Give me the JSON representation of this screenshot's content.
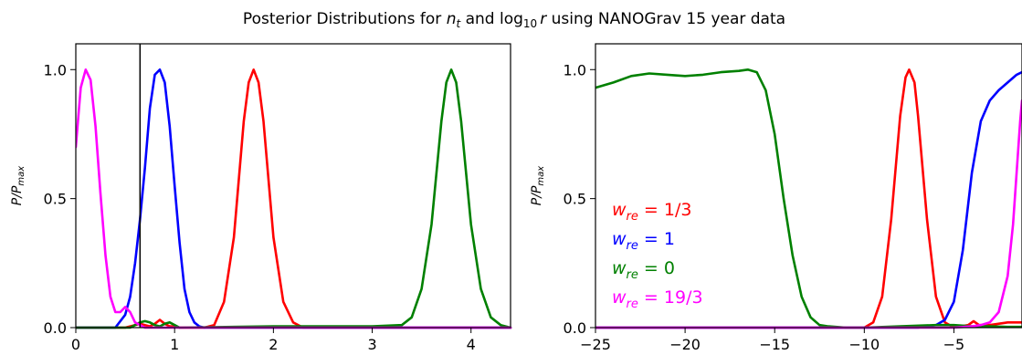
{
  "figure": {
    "title_prefix": "Posterior Distributions for ",
    "title_nt": "n",
    "title_nt_sub": "t",
    "title_and": " and log",
    "title_log_sub": "10",
    "title_r": "r",
    "title_suffix": " using NANOGrav 15 year data"
  },
  "chart_data": [
    {
      "type": "line",
      "ylabel": "P/P",
      "ylabel_sub": "max",
      "xlim": [
        0,
        4.4
      ],
      "ylim": [
        0,
        1.1
      ],
      "xticks": [
        "0",
        "1",
        "2",
        "3",
        "4"
      ],
      "yticks": [
        "0.0",
        "0.5",
        "1.0"
      ],
      "grid": false,
      "vertical_line_x": 0.65,
      "series": [
        {
          "color": "#ff0000",
          "x": [
            0.0,
            0.5,
            0.6,
            0.65,
            0.7,
            0.75,
            0.8,
            0.85,
            0.9,
            0.95,
            1.0,
            1.05,
            1.2,
            1.3,
            1.4,
            1.5,
            1.6,
            1.7,
            1.75,
            1.8,
            1.85,
            1.9,
            2.0,
            2.1,
            2.2,
            2.3,
            2.4,
            4.4
          ],
          "y": [
            0.0,
            0.0,
            0.01,
            0.015,
            0.01,
            0.005,
            0.015,
            0.03,
            0.015,
            0.005,
            0.005,
            0.0,
            0.0,
            0.0,
            0.01,
            0.1,
            0.35,
            0.8,
            0.95,
            1.0,
            0.95,
            0.8,
            0.35,
            0.1,
            0.02,
            0.0,
            0.0,
            0.0
          ]
        },
        {
          "color": "#0000ff",
          "x": [
            0.0,
            0.4,
            0.5,
            0.55,
            0.6,
            0.65,
            0.7,
            0.75,
            0.8,
            0.85,
            0.9,
            0.95,
            1.0,
            1.05,
            1.1,
            1.15,
            1.2,
            1.25,
            1.3,
            4.4
          ],
          "y": [
            0.0,
            0.0,
            0.05,
            0.12,
            0.25,
            0.42,
            0.62,
            0.85,
            0.98,
            1.0,
            0.95,
            0.78,
            0.55,
            0.33,
            0.15,
            0.06,
            0.02,
            0.005,
            0.0,
            0.0
          ]
        },
        {
          "color": "#008000",
          "x": [
            0.0,
            0.55,
            0.6,
            0.65,
            0.7,
            0.75,
            0.8,
            0.85,
            0.9,
            0.95,
            1.0,
            1.05,
            2.0,
            3.0,
            3.3,
            3.4,
            3.5,
            3.6,
            3.7,
            3.75,
            3.8,
            3.85,
            3.9,
            4.0,
            4.1,
            4.2,
            4.3,
            4.4
          ],
          "y": [
            0.0,
            0.0,
            0.01,
            0.02,
            0.025,
            0.02,
            0.01,
            0.005,
            0.015,
            0.02,
            0.01,
            0.0,
            0.005,
            0.005,
            0.01,
            0.04,
            0.15,
            0.4,
            0.8,
            0.95,
            1.0,
            0.95,
            0.8,
            0.4,
            0.15,
            0.04,
            0.01,
            0.0
          ]
        },
        {
          "color": "#ff00ff",
          "x": [
            0.0,
            0.05,
            0.1,
            0.15,
            0.2,
            0.25,
            0.3,
            0.35,
            0.4,
            0.45,
            0.5,
            0.55,
            0.6,
            0.7,
            4.4
          ],
          "y": [
            0.7,
            0.93,
            1.0,
            0.96,
            0.78,
            0.52,
            0.28,
            0.12,
            0.06,
            0.06,
            0.08,
            0.06,
            0.02,
            0.0,
            0.0
          ]
        }
      ]
    },
    {
      "type": "line",
      "ylabel": "P/P",
      "ylabel_sub": "max",
      "xlim": [
        -25,
        -1.2
      ],
      "ylim": [
        0,
        1.1
      ],
      "xticks": [
        "−25",
        "−20",
        "−15",
        "−10",
        "−5"
      ],
      "yticks": [
        "0.0",
        "0.5",
        "1.0"
      ],
      "grid": false,
      "legend_position": "center-left",
      "series": [
        {
          "name": "w_re = 1/3",
          "name_base": "w",
          "name_sub": "re",
          "name_value": " = 1/3",
          "color": "#ff0000",
          "x": [
            -25,
            -10,
            -9.5,
            -9,
            -8.5,
            -8,
            -7.7,
            -7.5,
            -7.2,
            -7,
            -6.5,
            -6,
            -5.5,
            -5,
            -4.2,
            -3.9,
            -3.6,
            -3,
            -2,
            -1.2
          ],
          "y": [
            0.0,
            0.0,
            0.02,
            0.12,
            0.42,
            0.82,
            0.97,
            1.0,
            0.95,
            0.82,
            0.42,
            0.12,
            0.02,
            0.0,
            0.01,
            0.025,
            0.01,
            0.01,
            0.02,
            0.02
          ]
        },
        {
          "name": "w_re = 1",
          "name_base": "w",
          "name_sub": "re",
          "name_value": " = 1",
          "color": "#0000ff",
          "x": [
            -25,
            -7,
            -6,
            -5.5,
            -5,
            -4.5,
            -4,
            -3.5,
            -3,
            -2.5,
            -2,
            -1.5,
            -1.2
          ],
          "y": [
            0.0,
            0.0,
            0.01,
            0.03,
            0.1,
            0.3,
            0.6,
            0.8,
            0.88,
            0.92,
            0.95,
            0.98,
            0.99
          ]
        },
        {
          "name": "w_re = 0",
          "name_base": "w",
          "name_sub": "re",
          "name_value": " = 0",
          "color": "#008000",
          "x": [
            -25,
            -24,
            -23,
            -22,
            -21,
            -20,
            -19,
            -18,
            -17,
            -16.5,
            -16,
            -15.5,
            -15,
            -14.5,
            -14,
            -13.5,
            -13,
            -12.5,
            -12,
            -11,
            -10,
            -8,
            -6,
            -5,
            -4,
            -3,
            -2,
            -1.2
          ],
          "y": [
            0.93,
            0.95,
            0.975,
            0.985,
            0.98,
            0.975,
            0.98,
            0.99,
            0.995,
            1.0,
            0.99,
            0.92,
            0.75,
            0.5,
            0.28,
            0.12,
            0.04,
            0.01,
            0.005,
            0.0,
            0.0,
            0.005,
            0.01,
            0.01,
            0.005,
            0.005,
            0.003,
            0.003
          ]
        },
        {
          "name": "w_re = 19/3",
          "name_base": "w",
          "name_sub": "re",
          "name_value": " = 19/3",
          "color": "#ff00ff",
          "x": [
            -25,
            -5,
            -4,
            -3.5,
            -3,
            -2.5,
            -2,
            -1.7,
            -1.5,
            -1.3,
            -1.2
          ],
          "y": [
            0.0,
            0.0,
            0.005,
            0.01,
            0.02,
            0.06,
            0.2,
            0.4,
            0.6,
            0.8,
            0.88
          ]
        }
      ]
    }
  ]
}
